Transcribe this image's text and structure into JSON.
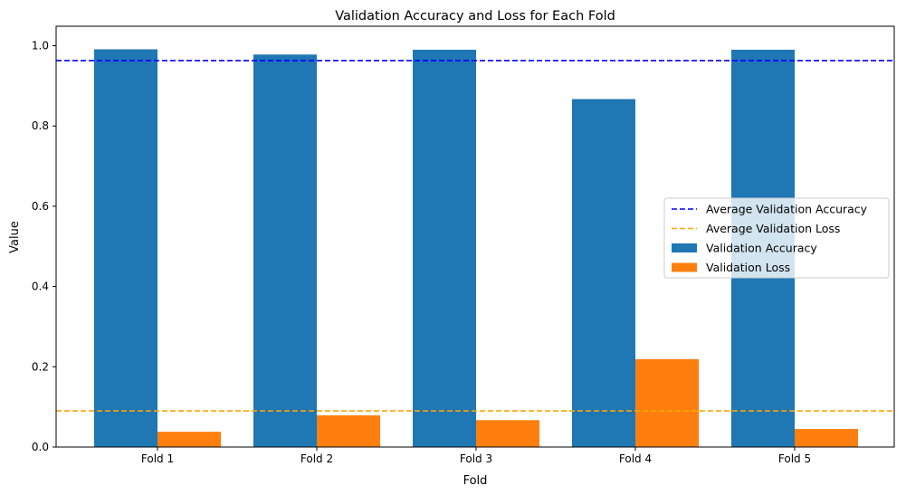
{
  "chart_data": {
    "type": "bar",
    "title": "Validation Accuracy and Loss for Each Fold",
    "xlabel": "Fold",
    "ylabel": "Value",
    "categories": [
      "Fold 1",
      "Fold 2",
      "Fold 3",
      "Fold 4",
      "Fold 5"
    ],
    "series": [
      {
        "name": "Validation Accuracy",
        "color": "#1f77b4",
        "values": [
          0.991,
          0.978,
          0.99,
          0.867,
          0.99
        ]
      },
      {
        "name": "Validation Loss",
        "color": "#ff7f0e",
        "values": [
          0.038,
          0.079,
          0.067,
          0.219,
          0.045
        ]
      }
    ],
    "reference_lines": [
      {
        "name": "Average Validation Accuracy",
        "value": 0.963,
        "color": "#0000ff",
        "style": "dashed"
      },
      {
        "name": "Average Validation Loss",
        "value": 0.09,
        "color": "#ffa500",
        "style": "dashed"
      }
    ],
    "ylim": [
      0,
      1.04
    ],
    "yticks": [
      "0.0",
      "0.2",
      "0.4",
      "0.6",
      "0.8",
      "1.0"
    ],
    "ytick_values": [
      0.0,
      0.2,
      0.4,
      0.6,
      0.8,
      1.0
    ],
    "grid": false,
    "legend_position": "center-right"
  }
}
